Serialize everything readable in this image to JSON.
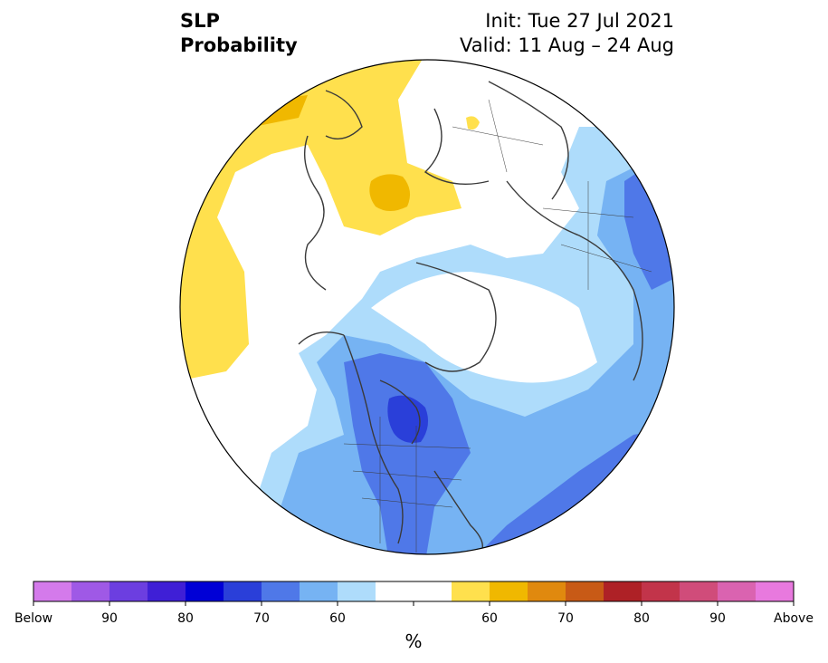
{
  "title": {
    "variable": "SLP",
    "kind": "Probability",
    "init": "Init: Tue 27 Jul 2021",
    "valid": "Valid: 11 Aug – 24 Aug"
  },
  "colors": {
    "below_60": "#aedcfb",
    "below_70": "#76b3f3",
    "below_80": "#4f78e8",
    "below_85": "#2a3fd9",
    "above_60": "#ffe04d",
    "above_70": "#f0b800",
    "neutral": "#ffffff",
    "coast": "#3a3a3a"
  },
  "colorbar": {
    "unit": "%",
    "segments": [
      "#d47aeb",
      "#9f59e6",
      "#6c3ee0",
      "#3f1fd6",
      "#0000d6",
      "#2a3fd9",
      "#4f78e8",
      "#76b3f3",
      "#aedcfb",
      "#ffffff",
      "#ffffff",
      "#ffe04d",
      "#f0b800",
      "#e0890e",
      "#c85a16",
      "#ae2126",
      "#c2344a",
      "#d04c7a",
      "#da63b0",
      "#e879de"
    ],
    "tick_labels": [
      "Below",
      "90",
      "80",
      "70",
      "60",
      "60",
      "70",
      "80",
      "90",
      "Above"
    ]
  }
}
